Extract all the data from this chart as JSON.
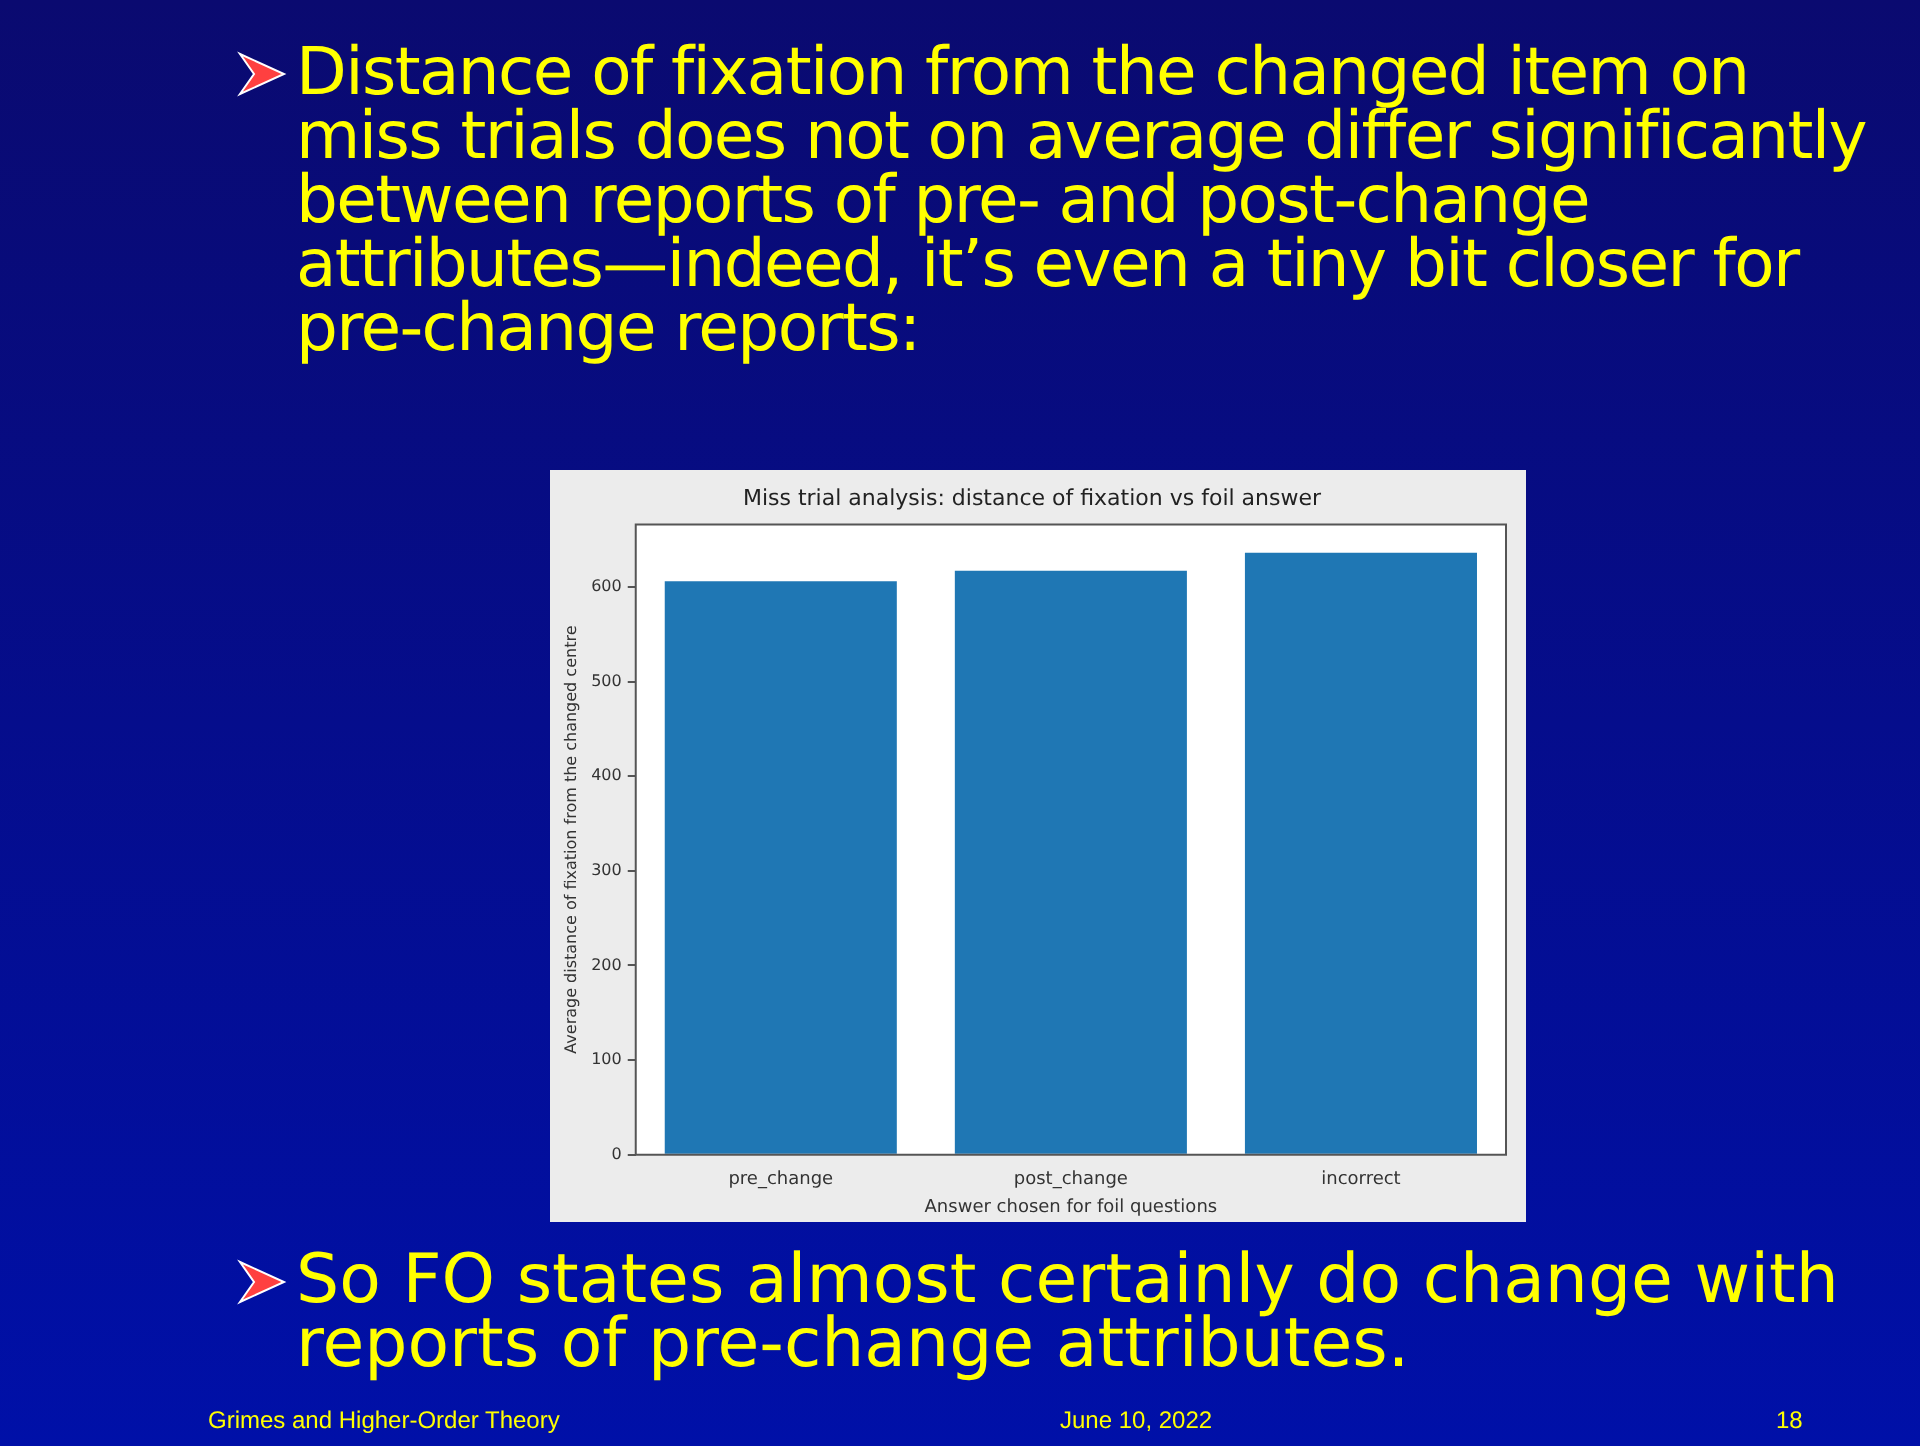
{
  "chart_data": {
    "type": "bar",
    "title": "Miss trial analysis: distance of fixation vs foil answer",
    "xlabel": "Answer chosen for foil questions",
    "ylabel": "Average distance of fixation from the changed centre",
    "categories": [
      "pre_change",
      "post_change",
      "incorrect"
    ],
    "values": [
      606,
      617,
      636
    ],
    "color": "#1f77b4",
    "ylim": [
      0,
      666
    ],
    "yticks": [
      0,
      100,
      200,
      300,
      400,
      500,
      600
    ],
    "grid": false,
    "legend": false,
    "annotations": [
      "Distance of fixation from the changed item on miss trials does not on average differ significantly between reports of pre- and post-change attributes—indeed, it’s even a tiny bit closer for pre-change reports:",
      "So FO states almost certainly do change with reports of pre-change attributes.",
      "Grimes and Higher-Order Theory",
      "June 10, 2022",
      "18"
    ]
  }
}
